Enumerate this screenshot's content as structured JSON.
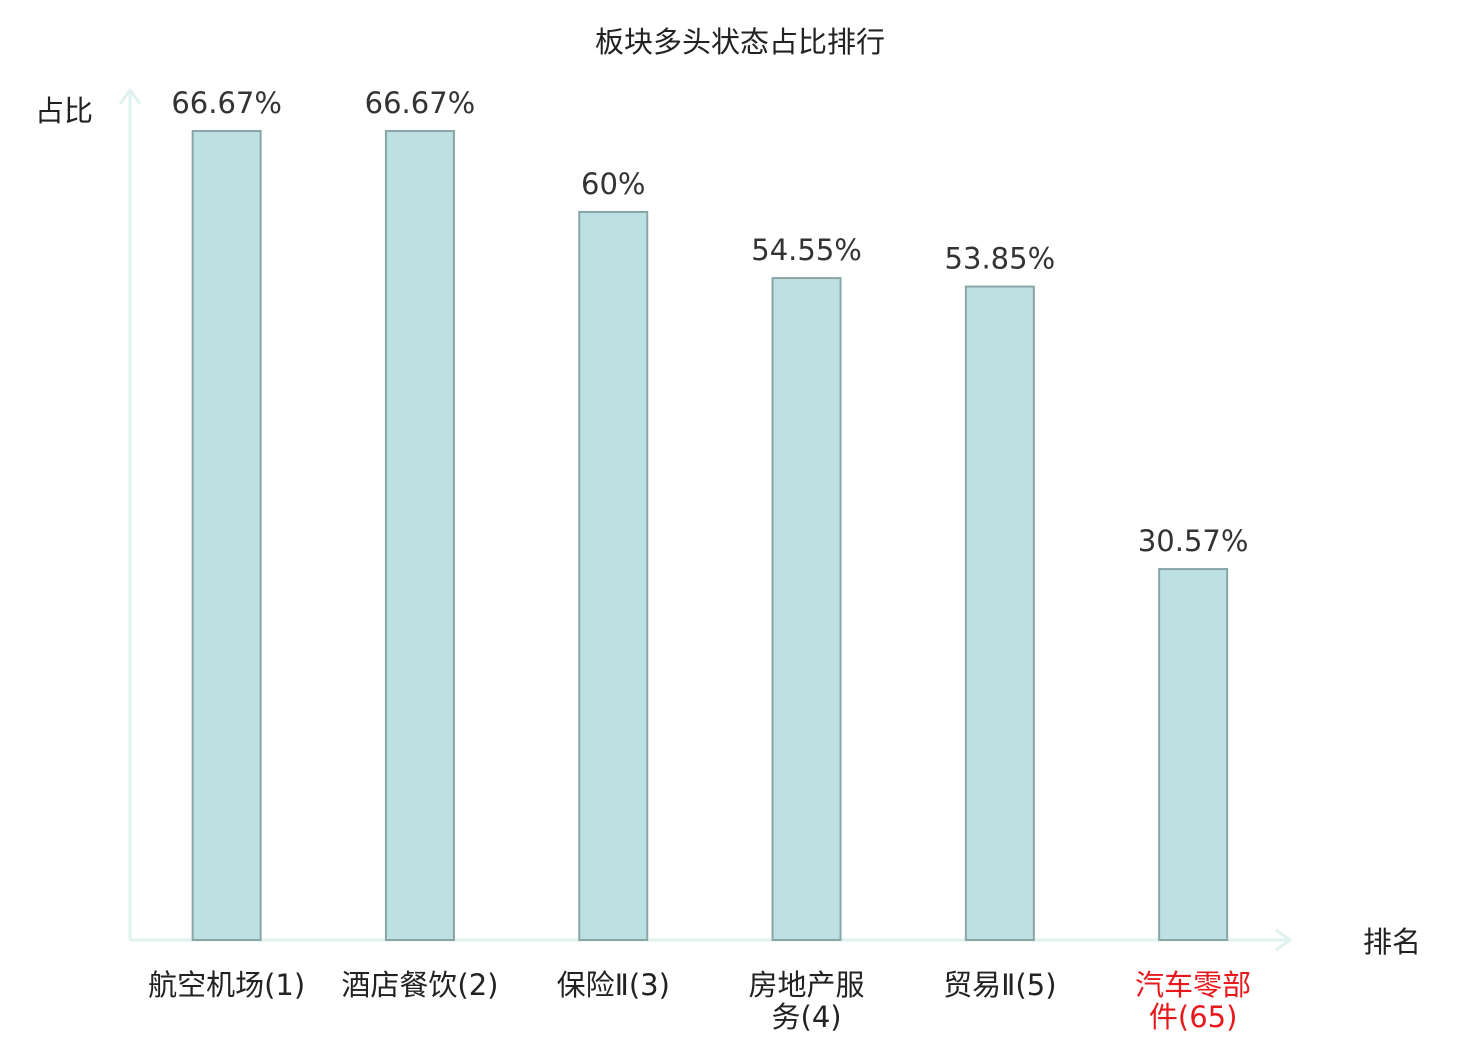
{
  "chart_data": {
    "type": "bar",
    "title": "板块多头状态占比排行",
    "ylabel": "占比",
    "xlabel": "排名",
    "ylim": [
      0,
      100
    ],
    "categories": [
      [
        "航空机场(1)"
      ],
      [
        "酒店餐饮(2)"
      ],
      [
        "保险Ⅱ(3)"
      ],
      [
        "房地产服",
        "务(4)"
      ],
      [
        "贸易Ⅱ(5)"
      ],
      [
        "汽车零部",
        "件(65)"
      ]
    ],
    "values": [
      66.67,
      66.67,
      60,
      54.55,
      53.85,
      30.57
    ],
    "value_labels": [
      "66.67%",
      "66.67%",
      "60%",
      "54.55%",
      "53.85%",
      "30.57%"
    ],
    "highlight_index": 5,
    "colors": {
      "bar_fill": "#bde0e3",
      "bar_stroke": "#8aa5a8",
      "axis": "#e0f2ef",
      "text": "#333333",
      "highlight_text": "#e8191d"
    },
    "grid": false,
    "legend": "none"
  }
}
